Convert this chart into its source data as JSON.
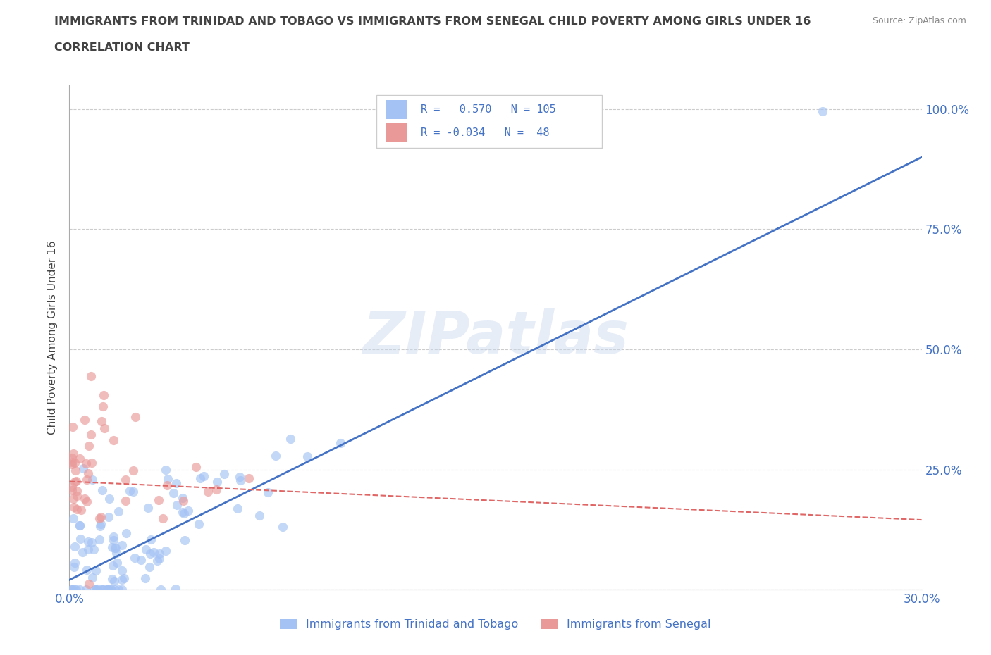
{
  "title_line1": "IMMIGRANTS FROM TRINIDAD AND TOBAGO VS IMMIGRANTS FROM SENEGAL CHILD POVERTY AMONG GIRLS UNDER 16",
  "title_line2": "CORRELATION CHART",
  "source": "Source: ZipAtlas.com",
  "ylabel": "Child Poverty Among Girls Under 16",
  "xlim": [
    0.0,
    0.3
  ],
  "ylim": [
    0.0,
    1.05
  ],
  "ytick_positions": [
    0.0,
    0.25,
    0.5,
    0.75,
    1.0
  ],
  "yticklabels": [
    "",
    "25.0%",
    "50.0%",
    "75.0%",
    "100.0%"
  ],
  "color_blue": "#a4c2f4",
  "color_pink": "#ea9999",
  "line_blue": "#4472c4",
  "line_pink": "#e06666",
  "watermark": "ZIPatlas",
  "label1": "Immigrants from Trinidad and Tobago",
  "label2": "Immigrants from Senegal",
  "blue_R": 0.57,
  "pink_R": -0.034,
  "blue_N": 105,
  "pink_N": 48,
  "title_color": "#434343",
  "axis_label_color": "#434343",
  "tick_label_color": "#4472c4",
  "grid_color": "#cccccc",
  "background_color": "#ffffff",
  "blue_line_x0": 0.0,
  "blue_line_y0": 0.02,
  "blue_line_x1": 0.3,
  "blue_line_y1": 0.9,
  "pink_line_x0": 0.0,
  "pink_line_y0": 0.225,
  "pink_line_x1": 0.3,
  "pink_line_y1": 0.145
}
